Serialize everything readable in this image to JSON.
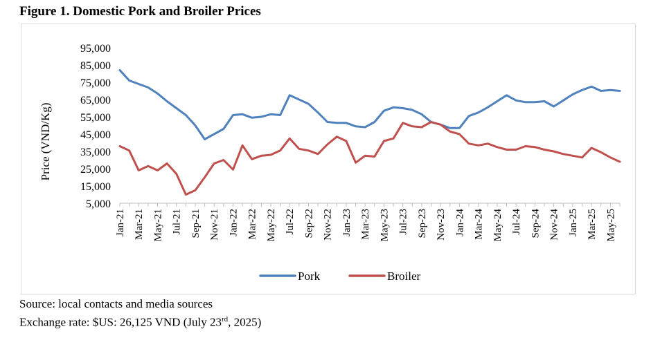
{
  "figure": {
    "title": "Figure 1.  Domestic Pork and Broiler Prices",
    "source": "Source: local contacts and media sources",
    "exchange_prefix": "Exchange rate: $US: 26,125 VND (July 23",
    "exchange_sup": "rd",
    "exchange_suffix": ", 2025)"
  },
  "colors": {
    "pork": "#4F81BD",
    "broiler": "#C0504D",
    "axis": "#BFBFBF"
  },
  "chart_data": {
    "type": "line",
    "title": "Domestic Pork and Broiler Prices",
    "xlabel": "",
    "ylabel": "Price (VND/Kg)",
    "ylim": [
      5000,
      95000
    ],
    "yticks": [
      5000,
      15000,
      25000,
      35000,
      45000,
      55000,
      65000,
      75000,
      85000,
      95000
    ],
    "ytick_labels": [
      "5,000",
      "15,000",
      "25,000",
      "35,000",
      "45,000",
      "55,000",
      "65,000",
      "75,000",
      "85,000",
      "95,000"
    ],
    "grid": "horizontal",
    "legend": "bottom-center",
    "categories": [
      "Jan-21",
      "",
      "Mar-21",
      "",
      "May-21",
      "",
      "Jul-21",
      "",
      "Sep-21",
      "",
      "Nov-21",
      "",
      "Jan-22",
      "",
      "Mar-22",
      "",
      "May-22",
      "",
      "Jul-22",
      "",
      "Sep-22",
      "",
      "Nov-22",
      "",
      "Jan-23",
      "",
      "Mar-23",
      "",
      "May-23",
      "",
      "Jul-23",
      "",
      "Sep-23",
      "",
      "Nov-23",
      "",
      "Jan-24",
      "",
      "Mar-24",
      "",
      "May-24",
      "",
      "Jul-24",
      "",
      "Sep-24",
      "",
      "Nov-24",
      "",
      "Jan-25",
      "",
      "Mar-25",
      "",
      "May-25",
      ""
    ],
    "x_points_per_month": 1,
    "series": [
      {
        "name": "Pork",
        "values": [
          82000,
          76000,
          74000,
          72000,
          68500,
          64000,
          60000,
          56000,
          50000,
          42000,
          45000,
          48000,
          56000,
          56500,
          54500,
          55000,
          56500,
          56000,
          67500,
          65000,
          62500,
          57500,
          52000,
          51500,
          51500,
          49500,
          49000,
          52000,
          58500,
          60500,
          60000,
          59000,
          56500,
          52000,
          50500,
          48500,
          48500,
          55500,
          57500,
          60500,
          64000,
          67500,
          64500,
          63500,
          63500,
          64000,
          61000,
          64500,
          68000,
          70500,
          72500,
          70000,
          70500,
          70000
        ]
      },
      {
        "name": "Broiler",
        "values": [
          38000,
          35500,
          24000,
          26500,
          24000,
          28000,
          22000,
          10000,
          12500,
          20000,
          28000,
          30000,
          24500,
          38500,
          30500,
          32500,
          33000,
          35500,
          42500,
          36500,
          35500,
          33500,
          39000,
          43500,
          41000,
          28500,
          32500,
          32000,
          41000,
          42500,
          51500,
          49500,
          49000,
          52000,
          50500,
          46500,
          45000,
          39500,
          38500,
          39500,
          37500,
          36000,
          36000,
          38000,
          37500,
          36000,
          35000,
          33500,
          32500,
          31500,
          37000,
          34500,
          31500,
          29000
        ]
      }
    ]
  }
}
